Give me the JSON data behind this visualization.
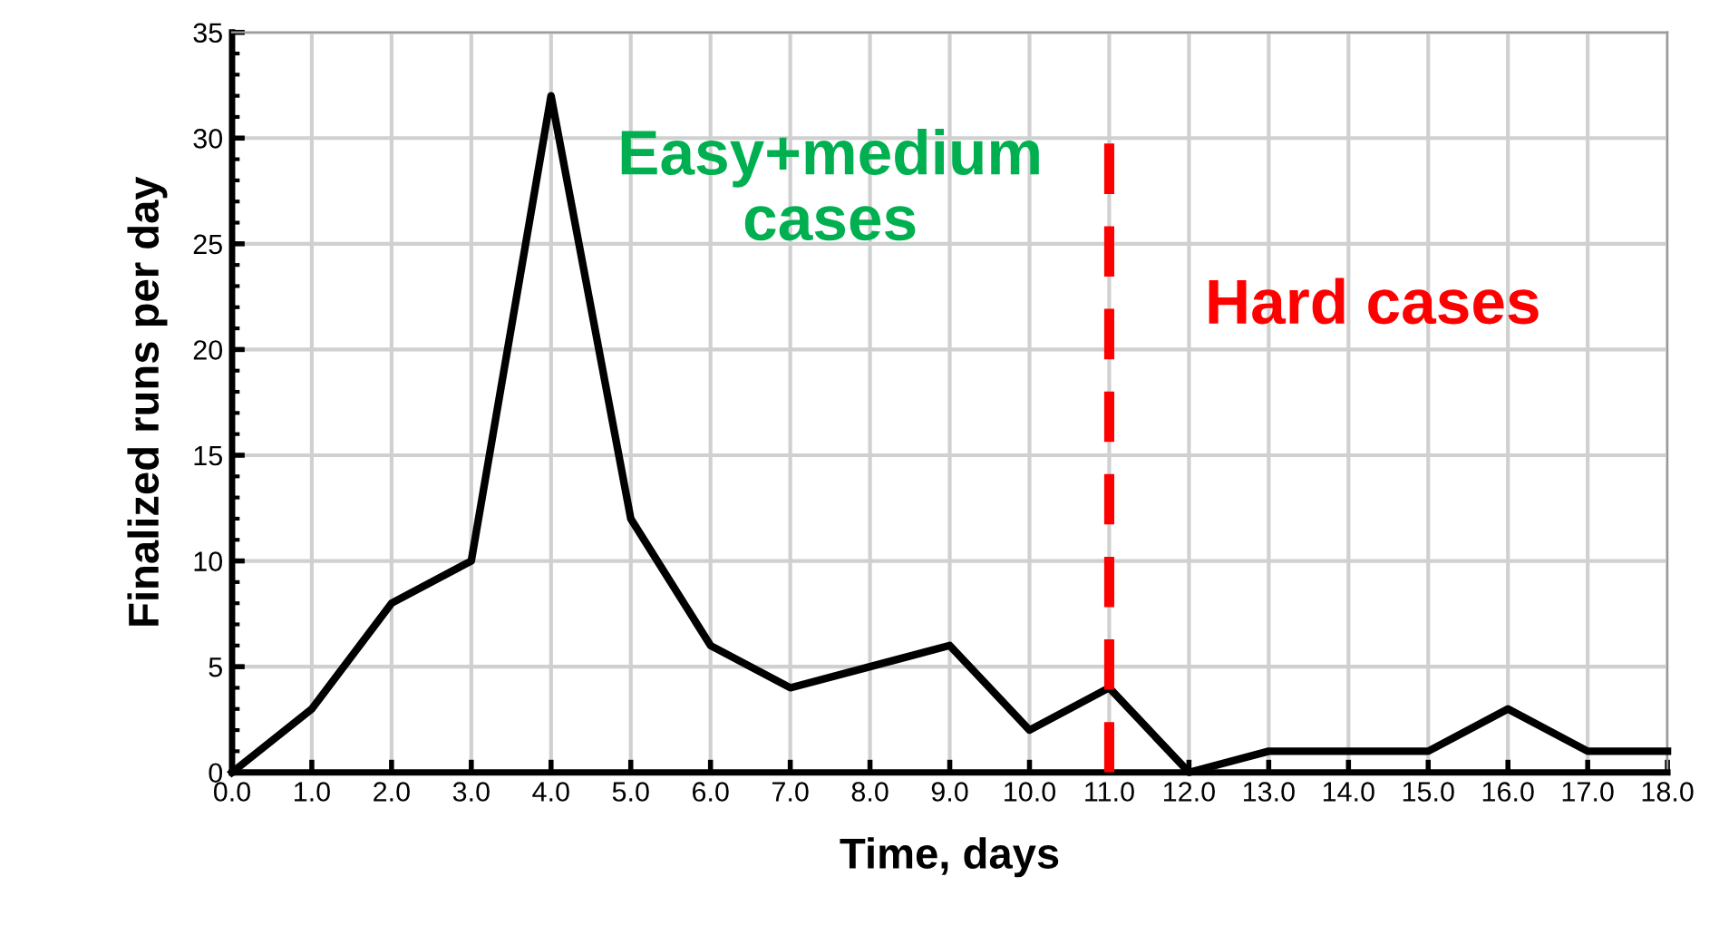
{
  "chart_data": {
    "type": "line",
    "xlabel": "Time, days",
    "ylabel": "Finalized runs per day",
    "x": [
      0,
      1,
      2,
      3,
      4,
      5,
      6,
      7,
      8,
      9,
      10,
      11,
      12,
      13,
      14,
      15,
      16,
      17,
      18
    ],
    "series": [
      {
        "color": "#000000",
        "values": [
          0,
          3,
          8,
          10,
          32,
          12,
          6,
          4,
          5,
          6,
          2,
          4,
          0,
          1,
          1,
          1,
          3,
          1,
          1
        ]
      }
    ],
    "xlim": [
      0,
      18
    ],
    "ylim": [
      0,
      35
    ],
    "xticks": [
      {
        "value": 0,
        "label": "0.0"
      },
      {
        "value": 1,
        "label": "1.0"
      },
      {
        "value": 2,
        "label": "2.0"
      },
      {
        "value": 3,
        "label": "3.0"
      },
      {
        "value": 4,
        "label": "4.0"
      },
      {
        "value": 5,
        "label": "5.0"
      },
      {
        "value": 6,
        "label": "6.0"
      },
      {
        "value": 7,
        "label": "7.0"
      },
      {
        "value": 8,
        "label": "8.0"
      },
      {
        "value": 9,
        "label": "9.0"
      },
      {
        "value": 10,
        "label": "10.0"
      },
      {
        "value": 11,
        "label": "11.0"
      },
      {
        "value": 12,
        "label": "12.0"
      },
      {
        "value": 13,
        "label": "13.0"
      },
      {
        "value": 14,
        "label": "14.0"
      },
      {
        "value": 15,
        "label": "15.0"
      },
      {
        "value": 16,
        "label": "16.0"
      },
      {
        "value": 17,
        "label": "17.0"
      },
      {
        "value": 18,
        "label": "18.0"
      }
    ],
    "yticks": [
      0,
      5,
      10,
      15,
      20,
      25,
      30,
      35
    ],
    "grid": true,
    "marker": "none",
    "line_style": "solid",
    "ref_lines": [
      {
        "axis": "x",
        "value": 11,
        "label": "Hard cases",
        "color": "#ff0000",
        "line_style": "dashed"
      }
    ],
    "annotations": [
      "Easy+medium cases"
    ]
  }
}
